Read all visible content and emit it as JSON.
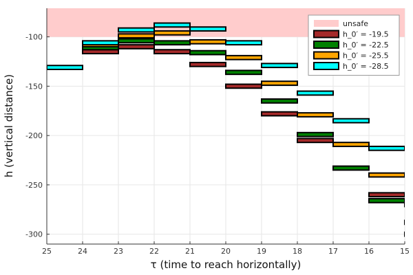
{
  "chart_data": {
    "type": "scatter",
    "title": "",
    "xlabel": "τ (time to reach horizontally)",
    "ylabel": "h (vertical distance)",
    "xlim": [
      25,
      15
    ],
    "ylim": [
      -310,
      -71
    ],
    "x_ticks": [
      25,
      24,
      23,
      22,
      21,
      20,
      19,
      18,
      17,
      16,
      15
    ],
    "y_ticks": [
      -300,
      -250,
      -200,
      -150,
      -100
    ],
    "grid": true,
    "legend_position": "top-right",
    "unsafe_region": {
      "name": "unsafe",
      "y_from": -100,
      "y_to": -71,
      "color": "#ffcccc"
    },
    "series": [
      {
        "name": "h_0′ = -19.5",
        "color": "#a52a2a",
        "boxes": [
          {
            "x": [
              24,
              23
            ],
            "y": [
              -117,
              -113
            ]
          },
          {
            "x": [
              23,
              22
            ],
            "y": [
              -112,
              -108
            ]
          },
          {
            "x": [
              22,
              21
            ],
            "y": [
              -117,
              -113
            ]
          },
          {
            "x": [
              21,
              20
            ],
            "y": [
              -130,
              -126
            ]
          },
          {
            "x": [
              20,
              19
            ],
            "y": [
              -152,
              -148
            ]
          },
          {
            "x": [
              19,
              18
            ],
            "y": [
              -180,
              -176
            ]
          },
          {
            "x": [
              18,
              17
            ],
            "y": [
              -207,
              -203
            ]
          },
          {
            "x": [
              16,
              15
            ],
            "y": [
              -262,
              -258
            ]
          },
          {
            "x": [
              15.0,
              14.85
            ],
            "y": [
              -290,
              -286
            ]
          }
        ]
      },
      {
        "name": "h_0′ = -22.5",
        "color": "#008000",
        "boxes": [
          {
            "x": [
              24,
              23
            ],
            "y": [
              -113,
              -109
            ]
          },
          {
            "x": [
              23,
              22
            ],
            "y": [
              -106,
              -102
            ]
          },
          {
            "x": [
              22,
              21
            ],
            "y": [
              -108,
              -104
            ]
          },
          {
            "x": [
              21,
              20
            ],
            "y": [
              -118,
              -114
            ]
          },
          {
            "x": [
              20,
              19
            ],
            "y": [
              -138,
              -134
            ]
          },
          {
            "x": [
              19,
              18
            ],
            "y": [
              -167,
              -163
            ]
          },
          {
            "x": [
              18,
              17
            ],
            "y": [
              -201,
              -197
            ]
          },
          {
            "x": [
              17,
              16
            ],
            "y": [
              -235,
              -231
            ]
          },
          {
            "x": [
              16,
              15
            ],
            "y": [
              -268,
              -264
            ]
          },
          {
            "x": [
              15.0,
              14.85
            ],
            "y": [
              -302,
              -298
            ]
          }
        ]
      },
      {
        "name": "h_0′ = -25.5",
        "color": "#ffa500",
        "boxes": [
          {
            "x": [
              24,
              23
            ],
            "y": [
              -110,
              -106
            ]
          },
          {
            "x": [
              23,
              22
            ],
            "y": [
              -101,
              -97
            ]
          },
          {
            "x": [
              22,
              21
            ],
            "y": [
              -98,
              -94
            ]
          },
          {
            "x": [
              21,
              20
            ],
            "y": [
              -107,
              -103
            ]
          },
          {
            "x": [
              20,
              19
            ],
            "y": [
              -123,
              -119
            ]
          },
          {
            "x": [
              19,
              18
            ],
            "y": [
              -149,
              -145
            ]
          },
          {
            "x": [
              18,
              17
            ],
            "y": [
              -181,
              -177
            ]
          },
          {
            "x": [
              17,
              16
            ],
            "y": [
              -211,
              -207
            ]
          },
          {
            "x": [
              16,
              15
            ],
            "y": [
              -242,
              -238
            ]
          },
          {
            "x": [
              15.0,
              14.85
            ],
            "y": [
              -272,
              -268
            ]
          }
        ]
      },
      {
        "name": "h_0′ = -28.5",
        "color": "#00ffff",
        "boxes": [
          {
            "x": [
              25,
              24
            ],
            "y": [
              -133,
              -129
            ]
          },
          {
            "x": [
              24,
              23
            ],
            "y": [
              -108,
              -104
            ]
          },
          {
            "x": [
              23,
              22
            ],
            "y": [
              -95,
              -91
            ]
          },
          {
            "x": [
              22,
              21
            ],
            "y": [
              -90,
              -86
            ]
          },
          {
            "x": [
              21,
              20
            ],
            "y": [
              -94,
              -90
            ]
          },
          {
            "x": [
              20,
              19
            ],
            "y": [
              -108,
              -104
            ]
          },
          {
            "x": [
              19,
              18
            ],
            "y": [
              -131,
              -127
            ]
          },
          {
            "x": [
              18,
              17
            ],
            "y": [
              -159,
              -155
            ]
          },
          {
            "x": [
              17,
              16
            ],
            "y": [
              -187,
              -183
            ]
          },
          {
            "x": [
              16,
              15
            ],
            "y": [
              -215,
              -211
            ]
          },
          {
            "x": [
              15.0,
              14.85
            ],
            "y": [
              -242,
              -238
            ]
          }
        ]
      }
    ]
  }
}
